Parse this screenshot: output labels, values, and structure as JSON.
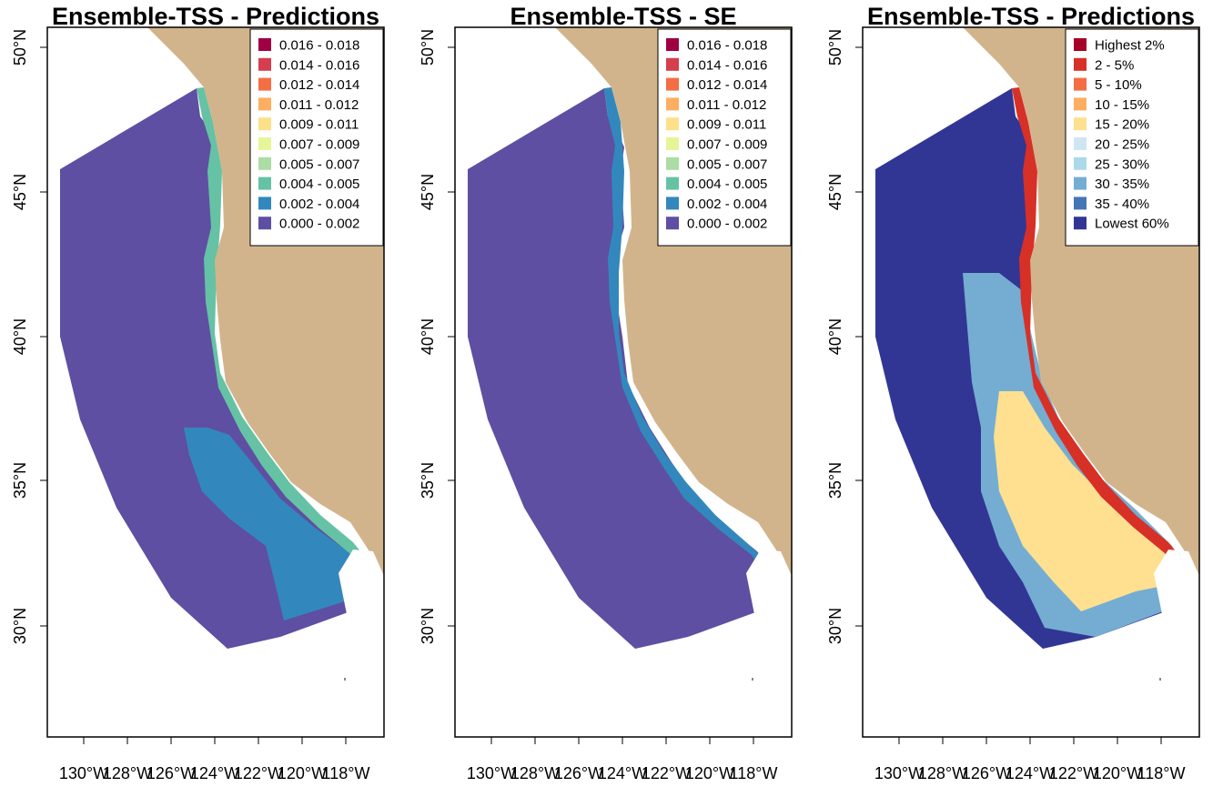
{
  "ocean_color": "#ffffff",
  "land_color": "#d2b48c",
  "chart_data": [
    {
      "type": "map",
      "title": "Ensemble-TSS - Predictions",
      "legend": {
        "position": "top-right",
        "items": [
          {
            "label": "0.016 - 0.018",
            "color": "#9e0142"
          },
          {
            "label": "0.014 - 0.016",
            "color": "#d53e4f"
          },
          {
            "label": "0.012 - 0.014",
            "color": "#f46d43"
          },
          {
            "label": "0.011 - 0.012",
            "color": "#fdae61"
          },
          {
            "label": "0.009 - 0.011",
            "color": "#fee08b"
          },
          {
            "label": "0.007 - 0.009",
            "color": "#e6f598"
          },
          {
            "label": "0.005 - 0.007",
            "color": "#abdda4"
          },
          {
            "label": "0.004 - 0.005",
            "color": "#66c2a5"
          },
          {
            "label": "0.002 - 0.004",
            "color": "#3288bd"
          },
          {
            "label": "0.000 - 0.002",
            "color": "#5e4fa2"
          }
        ]
      },
      "x_ticks": [
        "130°W",
        "128°W",
        "126°W",
        "124°W",
        "122°W",
        "120°W",
        "118°W"
      ],
      "y_ticks": [
        "30°N",
        "35°N",
        "40°N",
        "45°N",
        "50°N"
      ]
    },
    {
      "type": "map",
      "title": "Ensemble-TSS - SE",
      "legend": {
        "position": "top-right",
        "items": [
          {
            "label": "0.016 - 0.018",
            "color": "#9e0142"
          },
          {
            "label": "0.014 - 0.016",
            "color": "#d53e4f"
          },
          {
            "label": "0.012 - 0.014",
            "color": "#f46d43"
          },
          {
            "label": "0.011 - 0.012",
            "color": "#fdae61"
          },
          {
            "label": "0.009 - 0.011",
            "color": "#fee08b"
          },
          {
            "label": "0.007 - 0.009",
            "color": "#e6f598"
          },
          {
            "label": "0.005 - 0.007",
            "color": "#abdda4"
          },
          {
            "label": "0.004 - 0.005",
            "color": "#66c2a5"
          },
          {
            "label": "0.002 - 0.004",
            "color": "#3288bd"
          },
          {
            "label": "0.000 - 0.002",
            "color": "#5e4fa2"
          }
        ]
      },
      "x_ticks": [
        "130°W",
        "128°W",
        "126°W",
        "124°W",
        "122°W",
        "120°W",
        "118°W"
      ],
      "y_ticks": [
        "30°N",
        "35°N",
        "40°N",
        "45°N",
        "50°N"
      ]
    },
    {
      "type": "map",
      "title": "Ensemble-TSS - Predictions",
      "legend": {
        "position": "top-right",
        "items": [
          {
            "label": "Highest 2%",
            "color": "#a50026"
          },
          {
            "label": "2 - 5%",
            "color": "#d73027"
          },
          {
            "label": "5 - 10%",
            "color": "#f46d43"
          },
          {
            "label": "10 - 15%",
            "color": "#fdae61"
          },
          {
            "label": "15 - 20%",
            "color": "#fee090"
          },
          {
            "label": "20 - 25%",
            "color": "#cfe6f2"
          },
          {
            "label": "25 - 30%",
            "color": "#abd9e9"
          },
          {
            "label": "30 - 35%",
            "color": "#74add1"
          },
          {
            "label": "35 - 40%",
            "color": "#4575b4"
          },
          {
            "label": "Lowest 60%",
            "color": "#313695"
          }
        ]
      },
      "x_ticks": [
        "130°W",
        "128°W",
        "126°W",
        "124°W",
        "122°W",
        "120°W",
        "118°W"
      ],
      "y_ticks": [
        "30°N",
        "35°N",
        "40°N",
        "45°N",
        "50°N"
      ]
    }
  ]
}
